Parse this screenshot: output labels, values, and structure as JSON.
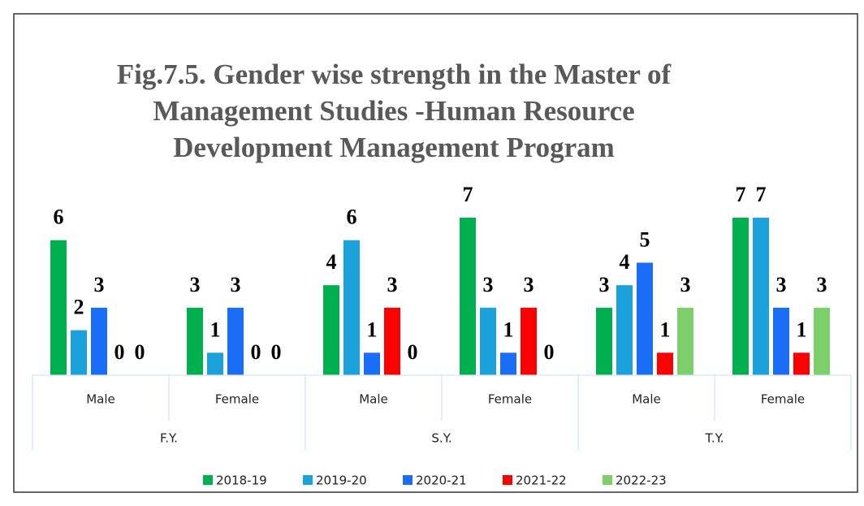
{
  "chart_data": {
    "type": "bar",
    "title_lines": [
      "Fig.7.5. Gender wise strength in the Master of",
      "Management Studies -Human Resource",
      "Development Management Program"
    ],
    "categories": [
      "Male",
      "Female",
      "Male",
      "Female",
      "Male",
      "Female"
    ],
    "groups": [
      "F.Y.",
      "S.Y.",
      "T.Y."
    ],
    "series": [
      {
        "name": "2018-19",
        "color": "#00b050",
        "values": [
          6,
          3,
          4,
          7,
          3,
          7
        ]
      },
      {
        "name": "2019-20",
        "color": "#1ba1dc",
        "values": [
          2,
          1,
          6,
          3,
          4,
          7
        ]
      },
      {
        "name": "2020-21",
        "color": "#1a6ef5",
        "values": [
          3,
          3,
          1,
          1,
          5,
          3
        ]
      },
      {
        "name": "2021-22",
        "color": "#ff0000",
        "values": [
          0,
          0,
          3,
          3,
          1,
          1
        ]
      },
      {
        "name": "2022-23",
        "color": "#7dcf6b",
        "values": [
          0,
          0,
          0,
          0,
          3,
          3
        ]
      }
    ],
    "legend": "bottom"
  }
}
